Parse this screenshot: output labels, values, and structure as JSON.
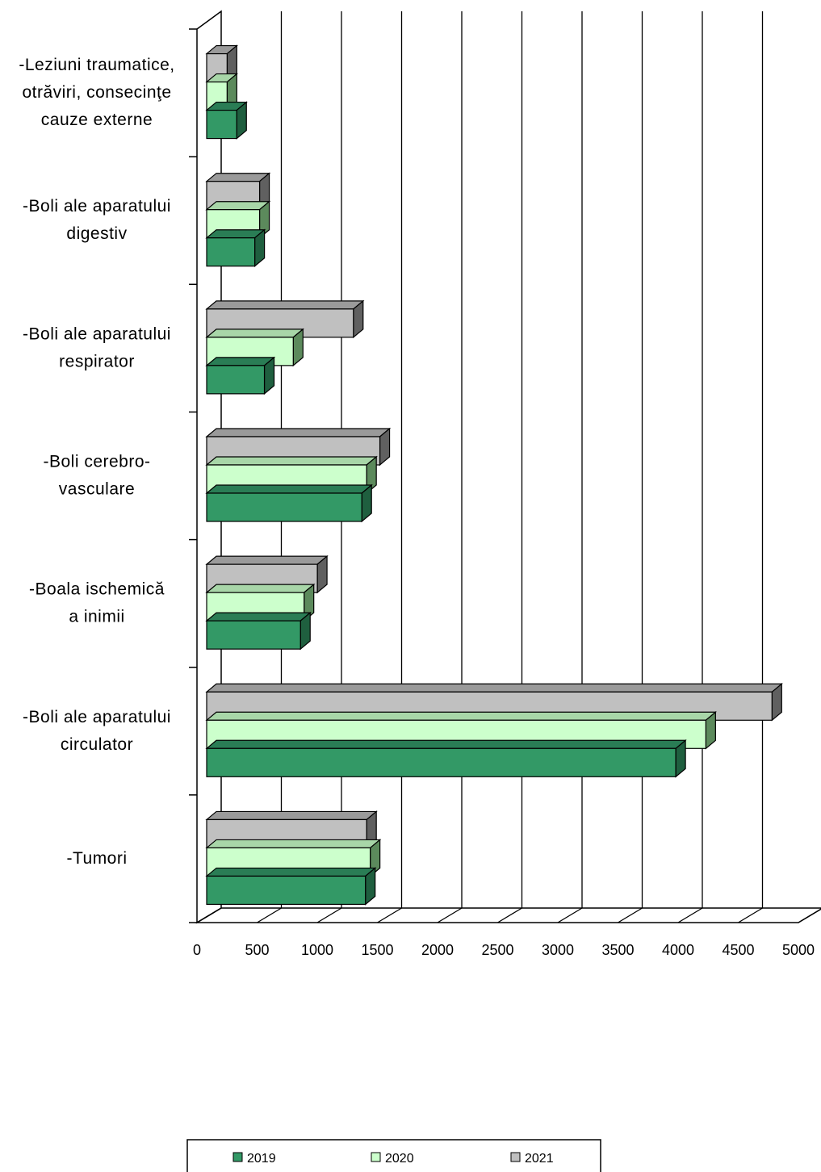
{
  "chart_data": {
    "type": "bar",
    "orientation": "horizontal",
    "three_d": true,
    "categories": [
      [
        "-Tumori"
      ],
      [
        "-Boli ale aparatului",
        "circulator"
      ],
      [
        "-Boala ischemică",
        "a inimii"
      ],
      [
        "-Boli cerebro-",
        "vasculare"
      ],
      [
        "-Boli ale aparatului",
        "respirator"
      ],
      [
        "-Boli ale aparatului",
        "digestiv"
      ],
      [
        "-Leziuni traumatice,",
        "otrăviri, consecinţe",
        "cauze externe"
      ]
    ],
    "series": [
      {
        "name": "2019",
        "color": "#339966",
        "side": "#1f5f3f",
        "top": "#2a7d55",
        "values": [
          1320,
          3900,
          780,
          1290,
          480,
          400,
          250
        ]
      },
      {
        "name": "2020",
        "color": "#ccffcc",
        "side": "#5c8a5c",
        "top": "#a8d6a8",
        "values": [
          1360,
          4150,
          810,
          1330,
          720,
          440,
          170
        ]
      },
      {
        "name": "2021",
        "color": "#c0c0c0",
        "side": "#606060",
        "top": "#9a9a9a",
        "values": [
          1330,
          4700,
          920,
          1440,
          1220,
          440,
          170
        ]
      }
    ],
    "xlim": [
      0,
      5000
    ],
    "xticks": [
      "0",
      "500",
      "1000",
      "1500",
      "2000",
      "2500",
      "3000",
      "3500",
      "4000",
      "4500",
      "5000"
    ],
    "grid": true,
    "legend_position": "bottom"
  }
}
